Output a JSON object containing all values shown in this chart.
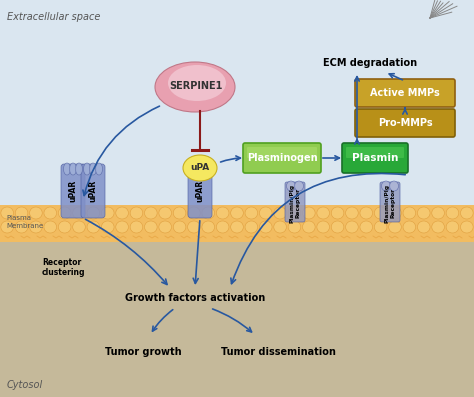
{
  "bg_extracellular": "#dae6f0",
  "bg_cytosol": "#c5b99a",
  "bg_membrane": "#f0b860",
  "extracellular_label": "Extracellular space",
  "cytosol_label": "Cytosol",
  "plasma_membrane_label": "Plasma\nMembrane",
  "serpine1_color_outer": "#e8a0a8",
  "serpine1_color_inner": "#f0c0c8",
  "serpine1_label": "SERPINE1",
  "upa_color": "#f0e878",
  "upa_label": "uPA",
  "plasminogen_color": "#8ccc50",
  "plasmin_color": "#28a838",
  "plasminogen_label": "Plasminogen",
  "plasmin_label": "Plasmin",
  "active_mmps_color": "#c8a228",
  "active_mmps_label": "Active MMPs",
  "pro_mmps_color": "#b89018",
  "pro_mmps_label": "Pro-MMPs",
  "ecm_label": "ECM degradation",
  "upar_color": "#7888c8",
  "upar_color2": "#a0b0d8",
  "plasmin_receptor_color": "#9098c0",
  "receptor_clustering_label": "Receptor\nclustering",
  "growth_factors_label": "Growth factors activation",
  "tumor_growth_label": "Tumor growth",
  "tumor_dissemination_label": "Tumor dissemination",
  "arrow_color": "#2858a0",
  "inhibit_color": "#8b1a1a",
  "membrane_bubble_color": "#f5c870",
  "membrane_bubble_edge": "#e0a040",
  "membrane_wave_color": "#e8a848"
}
